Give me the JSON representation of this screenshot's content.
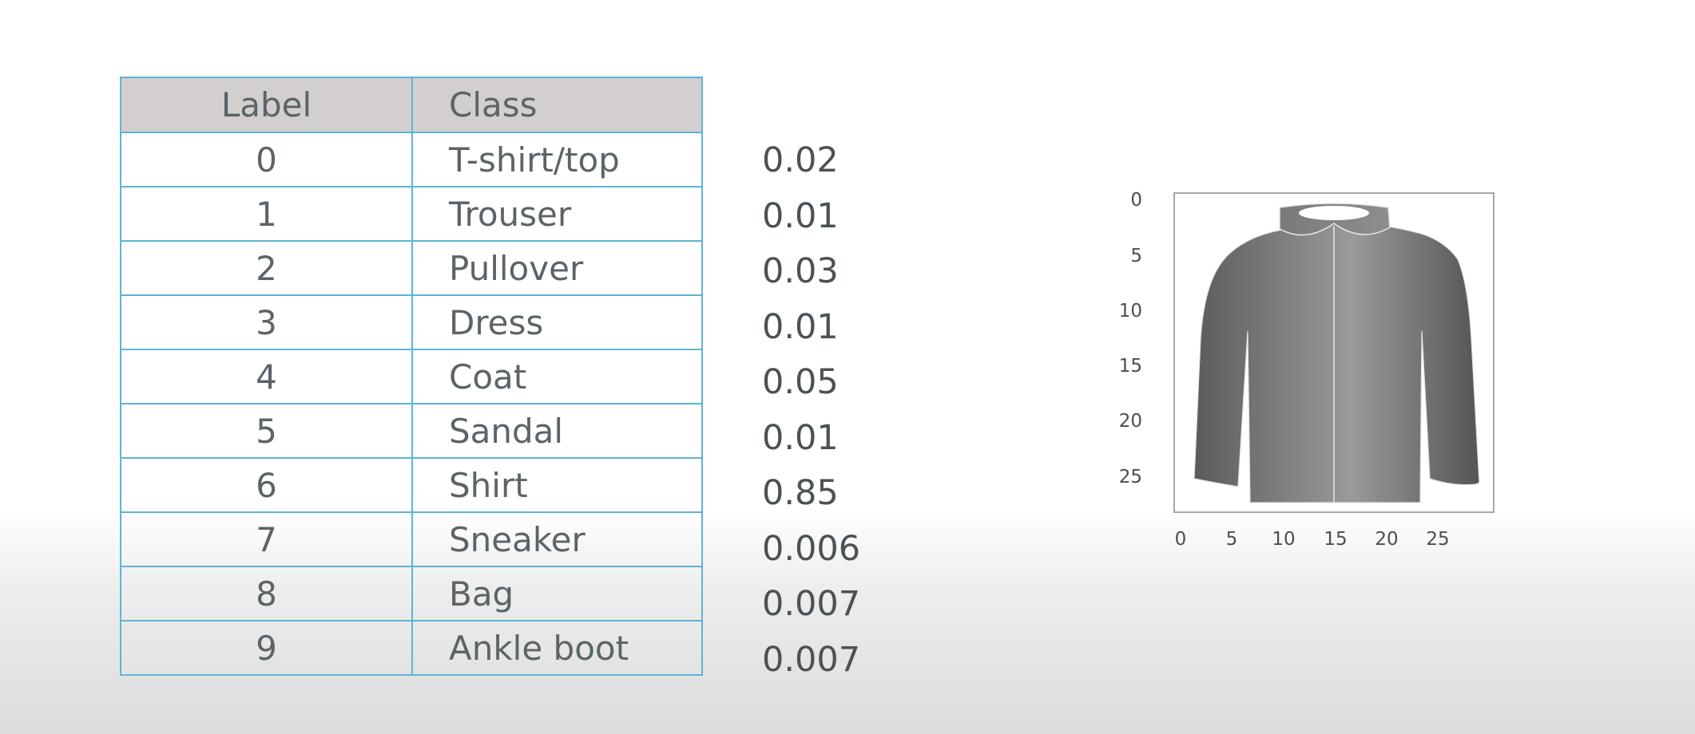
{
  "table": {
    "headers": {
      "label": "Label",
      "class": "Class"
    },
    "rows": [
      {
        "label": "0",
        "class": "T-shirt/top",
        "prob": "0.02"
      },
      {
        "label": "1",
        "class": "Trouser",
        "prob": "0.01"
      },
      {
        "label": "2",
        "class": "Pullover",
        "prob": "0.03"
      },
      {
        "label": "3",
        "class": "Dress",
        "prob": "0.01"
      },
      {
        "label": "4",
        "class": "Coat",
        "prob": "0.05"
      },
      {
        "label": "5",
        "class": "Sandal",
        "prob": "0.01"
      },
      {
        "label": "6",
        "class": "Shirt",
        "prob": "0.85"
      },
      {
        "label": "7",
        "class": "Sneaker",
        "prob": "0.006"
      },
      {
        "label": "8",
        "class": "Bag",
        "prob": "0.007"
      },
      {
        "label": "9",
        "class": "Ankle boot",
        "prob": "0.007"
      }
    ]
  },
  "image_plot": {
    "x_ticks": [
      "0",
      "5",
      "10",
      "15",
      "20",
      "25"
    ],
    "y_ticks": [
      "0",
      "5",
      "10",
      "15",
      "20",
      "25"
    ],
    "image_icon": "shirt-image",
    "colors": {
      "shirt_dark": "#5b5b5b",
      "shirt_light": "#9a9a9a",
      "frame": "#8c8c8c"
    }
  },
  "colors": {
    "table_border": "#5fb3d6",
    "header_background": "#d3cfcf",
    "text": "#5b6468"
  }
}
